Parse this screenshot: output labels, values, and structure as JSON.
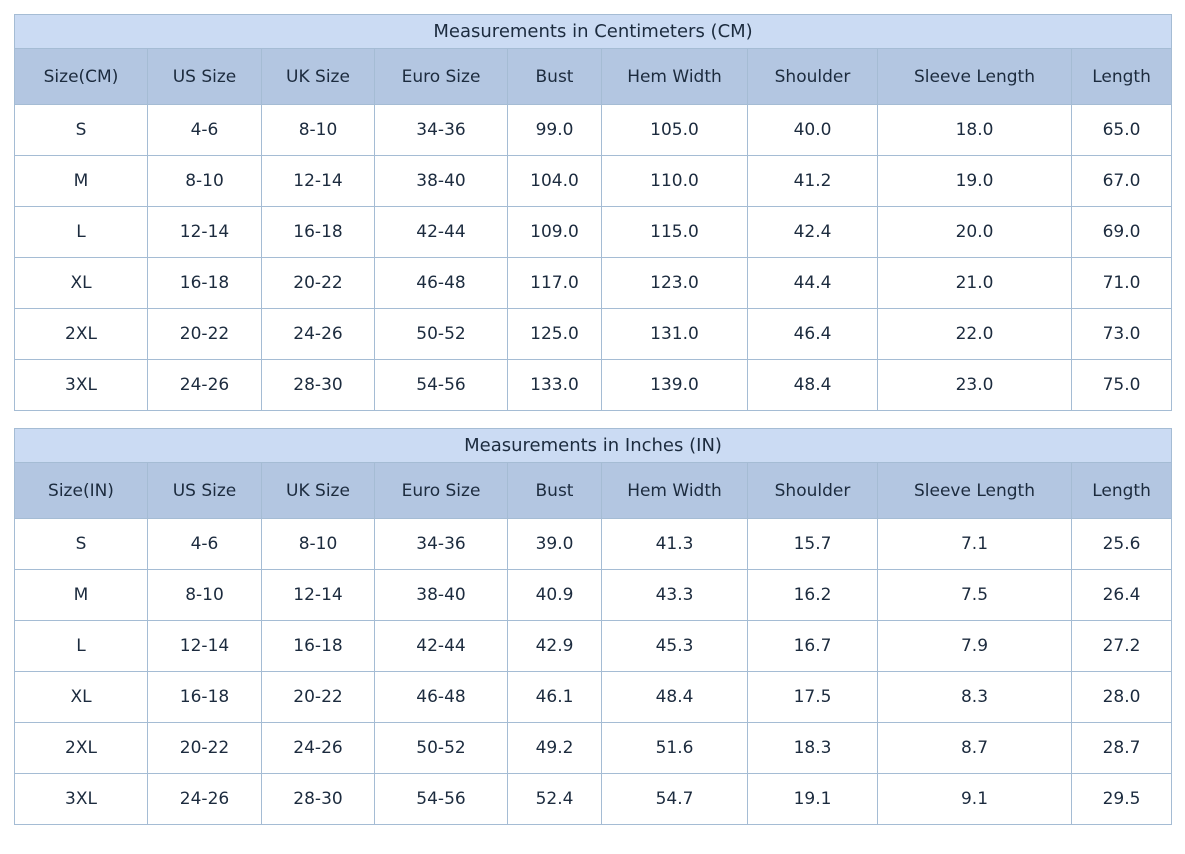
{
  "colors": {
    "title_bg": "#cbdbf3",
    "header_bg": "#b3c6e1",
    "row_bg": "#ffffff",
    "grid_border": "#a5bcd4",
    "outer_border": "#93a9c4",
    "text": "#1c2b3e"
  },
  "chart_data": [
    {
      "type": "table",
      "title": "Measurements in Centimeters (CM)",
      "columns": [
        "Size(CM)",
        "US Size",
        "UK Size",
        "Euro Size",
        "Bust",
        "Hem Width",
        "Shoulder",
        "Sleeve Length",
        "Length"
      ],
      "rows": [
        [
          "S",
          "4-6",
          "8-10",
          "34-36",
          "99.0",
          "105.0",
          "40.0",
          "18.0",
          "65.0"
        ],
        [
          "M",
          "8-10",
          "12-14",
          "38-40",
          "104.0",
          "110.0",
          "41.2",
          "19.0",
          "67.0"
        ],
        [
          "L",
          "12-14",
          "16-18",
          "42-44",
          "109.0",
          "115.0",
          "42.4",
          "20.0",
          "69.0"
        ],
        [
          "XL",
          "16-18",
          "20-22",
          "46-48",
          "117.0",
          "123.0",
          "44.4",
          "21.0",
          "71.0"
        ],
        [
          "2XL",
          "20-22",
          "24-26",
          "50-52",
          "125.0",
          "131.0",
          "46.4",
          "22.0",
          "73.0"
        ],
        [
          "3XL",
          "24-26",
          "28-30",
          "54-56",
          "133.0",
          "139.0",
          "48.4",
          "23.0",
          "75.0"
        ]
      ]
    },
    {
      "type": "table",
      "title": "Measurements in Inches (IN)",
      "columns": [
        "Size(IN)",
        "US Size",
        "UK Size",
        "Euro Size",
        "Bust",
        "Hem Width",
        "Shoulder",
        "Sleeve Length",
        "Length"
      ],
      "rows": [
        [
          "S",
          "4-6",
          "8-10",
          "34-36",
          "39.0",
          "41.3",
          "15.7",
          "7.1",
          "25.6"
        ],
        [
          "M",
          "8-10",
          "12-14",
          "38-40",
          "40.9",
          "43.3",
          "16.2",
          "7.5",
          "26.4"
        ],
        [
          "L",
          "12-14",
          "16-18",
          "42-44",
          "42.9",
          "45.3",
          "16.7",
          "7.9",
          "27.2"
        ],
        [
          "XL",
          "16-18",
          "20-22",
          "46-48",
          "46.1",
          "48.4",
          "17.5",
          "8.3",
          "28.0"
        ],
        [
          "2XL",
          "20-22",
          "24-26",
          "50-52",
          "49.2",
          "51.6",
          "18.3",
          "8.7",
          "28.7"
        ],
        [
          "3XL",
          "24-26",
          "28-30",
          "54-56",
          "52.4",
          "54.7",
          "19.1",
          "9.1",
          "29.5"
        ]
      ]
    }
  ]
}
